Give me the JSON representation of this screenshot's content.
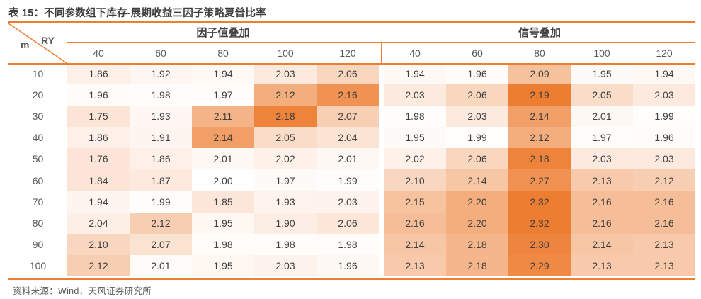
{
  "title": "表 15：不同参数组下库存-展期收益三因子策略夏普比率",
  "source": "资料来源：Wind，天风证券研究所",
  "table": {
    "corner": {
      "row_axis": "m",
      "col_axis": "RY"
    },
    "groups": [
      {
        "label": "因子值叠加",
        "columns": [
          "40",
          "60",
          "80",
          "100",
          "120"
        ]
      },
      {
        "label": "信号叠加",
        "columns": [
          "40",
          "60",
          "80",
          "100",
          "120"
        ]
      }
    ],
    "rows": [
      {
        "label": "10",
        "factor": [
          1.86,
          1.92,
          1.94,
          2.03,
          2.06
        ],
        "signal": [
          1.94,
          1.96,
          2.09,
          1.95,
          1.94
        ]
      },
      {
        "label": "20",
        "factor": [
          1.96,
          1.98,
          1.97,
          2.12,
          2.16
        ],
        "signal": [
          2.03,
          2.06,
          2.19,
          2.05,
          2.03
        ]
      },
      {
        "label": "30",
        "factor": [
          1.75,
          1.93,
          2.11,
          2.18,
          2.07
        ],
        "signal": [
          1.98,
          2.03,
          2.14,
          2.01,
          1.99
        ]
      },
      {
        "label": "40",
        "factor": [
          1.86,
          1.91,
          2.14,
          2.05,
          2.04
        ],
        "signal": [
          1.95,
          1.99,
          2.12,
          1.97,
          1.96
        ]
      },
      {
        "label": "50",
        "factor": [
          1.76,
          1.86,
          2.01,
          2.02,
          2.01
        ],
        "signal": [
          2.02,
          2.06,
          2.18,
          2.03,
          2.03
        ]
      },
      {
        "label": "60",
        "factor": [
          1.84,
          1.87,
          2.0,
          1.97,
          1.99
        ],
        "signal": [
          2.1,
          2.14,
          2.27,
          2.13,
          2.12
        ]
      },
      {
        "label": "70",
        "factor": [
          1.94,
          1.99,
          1.85,
          1.93,
          2.03
        ],
        "signal": [
          2.15,
          2.2,
          2.32,
          2.16,
          2.16
        ]
      },
      {
        "label": "80",
        "factor": [
          2.04,
          2.12,
          1.95,
          1.9,
          2.06
        ],
        "signal": [
          2.16,
          2.2,
          2.32,
          2.16,
          2.16
        ]
      },
      {
        "label": "90",
        "factor": [
          2.1,
          2.07,
          1.98,
          1.98,
          1.98
        ],
        "signal": [
          2.14,
          2.18,
          2.3,
          2.14,
          2.13
        ]
      },
      {
        "label": "100",
        "factor": [
          2.12,
          2.01,
          1.95,
          2.03,
          1.96
        ],
        "signal": [
          2.13,
          2.18,
          2.29,
          2.13,
          2.13
        ]
      }
    ],
    "heatmap": {
      "midpoint": 2.0,
      "low_color": "#FCE4D6",
      "mid_color": "#FFFFFF",
      "high_color": "#ED7D31",
      "row_bands": [
        [
          0,
          4
        ],
        [
          5,
          9
        ]
      ]
    },
    "accent_color": "#ED7D31",
    "value_decimals": 2
  }
}
